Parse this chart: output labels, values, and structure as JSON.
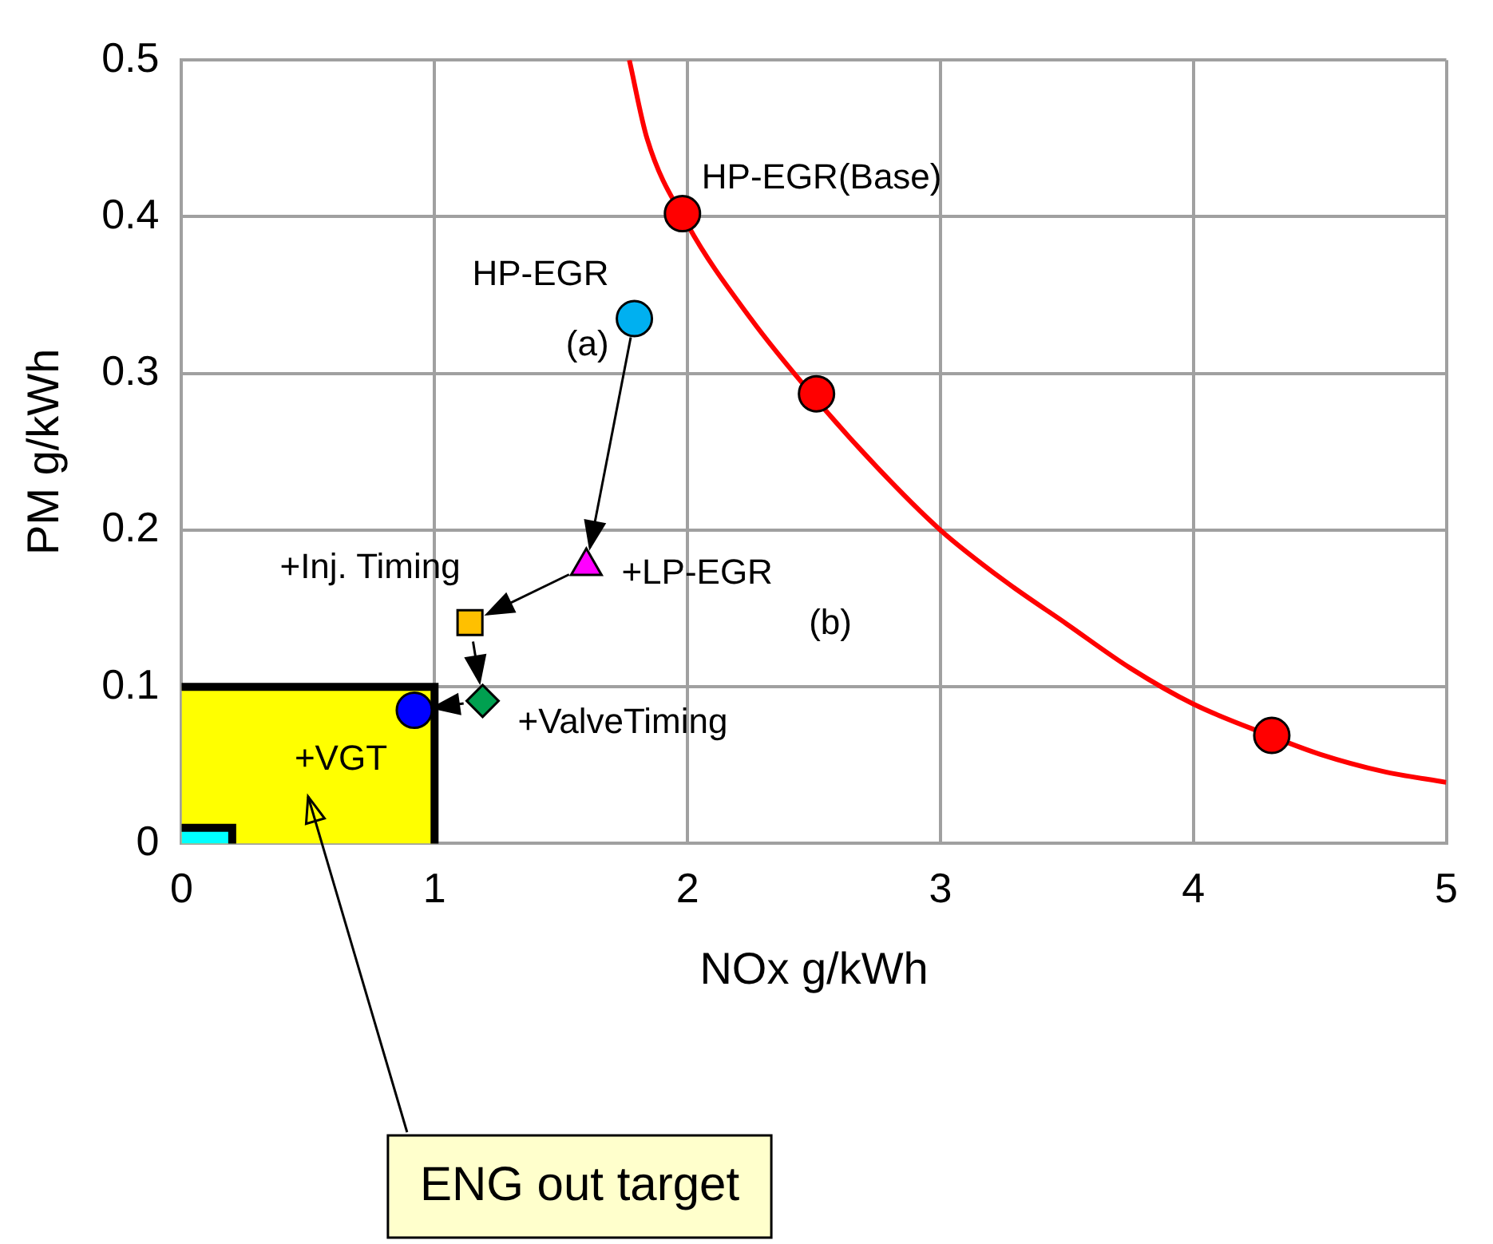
{
  "chart_data": {
    "type": "scatter",
    "xlabel": "NOx g/kWh",
    "ylabel": "PM g/kWh",
    "xlim": [
      0,
      5
    ],
    "xticks": [
      0,
      1,
      2,
      3,
      4,
      5
    ],
    "ylim": [
      0,
      0.5
    ],
    "yticks": [
      0,
      0.1,
      0.2,
      0.3,
      0.4,
      0.5
    ],
    "grid": true,
    "legend": false,
    "series": [
      {
        "type": "area",
        "color": "#ffff00",
        "x": [
          0,
          1,
          1
        ],
        "values": [
          0.1,
          0.1,
          0
        ]
      },
      {
        "type": "area",
        "color": "#00ffff",
        "x": [
          0,
          0.2,
          0.2
        ],
        "values": [
          0.01,
          0.01,
          0
        ]
      },
      {
        "type": "line",
        "color": "#ff0000",
        "marker": "none",
        "x": [
          1.77,
          1.84,
          2,
          2.25,
          2.5,
          2.75,
          3,
          3.25,
          3.5,
          3.75,
          4,
          4.3,
          4.5,
          4.75,
          5
        ],
        "values": [
          0.5,
          0.45,
          0.395,
          0.335,
          0.285,
          0.24,
          0.2,
          0.168,
          0.14,
          0.112,
          0.089,
          0.069,
          0.057,
          0.046,
          0.039
        ]
      },
      {
        "color": "#ff0000",
        "marker": "circle",
        "x": [
          1.98,
          2.51,
          4.31
        ],
        "values": [
          0.402,
          0.287,
          0.069
        ]
      },
      {
        "color": "#00b0f0",
        "marker": "circle",
        "x": [
          1.79
        ],
        "values": [
          0.335
        ]
      },
      {
        "color": "#ff00ff",
        "marker": "triangle",
        "x": [
          1.6
        ],
        "values": [
          0.177
        ]
      },
      {
        "color": "#ffc000",
        "marker": "square",
        "x": [
          1.14
        ],
        "values": [
          0.141
        ]
      },
      {
        "color": "#00a050",
        "marker": "diamond",
        "x": [
          1.19
        ],
        "values": [
          0.091
        ]
      },
      {
        "color": "#0000ff",
        "marker": "circle",
        "x": [
          0.92
        ],
        "values": [
          0.085
        ]
      }
    ],
    "annotations": [
      {
        "text": "HP-EGR(Base)",
        "x": 1.98,
        "y": 0.402
      },
      {
        "text": "HP-EGR\n(a)",
        "x": 1.79,
        "y": 0.335
      },
      {
        "text": "+LP-EGR",
        "x": 1.6,
        "y": 0.177
      },
      "(b)",
      {
        "text": "+Inj. Timing",
        "x": 1.14,
        "y": 0.141
      },
      {
        "text": "+ValveTiming",
        "x": 1.19,
        "y": 0.091
      },
      {
        "text": "+VGT",
        "x": 0.92,
        "y": 0.085
      },
      "ENG out target"
    ]
  }
}
